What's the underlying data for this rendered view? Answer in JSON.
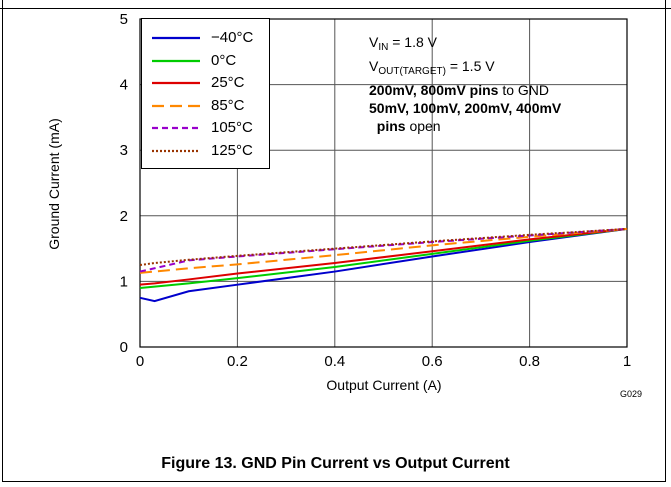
{
  "top_strip": "",
  "figure_code": "G029",
  "caption": "Figure 13. GND Pin Current vs Output Current",
  "notes": {
    "line1_main": "V",
    "line1_sub": "IN",
    "line1_rest": " = 1.8 V",
    "line2_main": "V",
    "line2_sub": "OUT(TARGET)",
    "line2_rest": " = 1.5 V",
    "line3_bold": "200mV, 800mV pins",
    "line3_rest": " to GND",
    "line4_bold": "50mV, 100mV, 200mV, 400mV",
    "line5_bold": "pins",
    "line5_rest": " open"
  },
  "chart_data": {
    "type": "line",
    "title": "Figure 13. GND Pin Current vs Output Current",
    "xlabel": "Output Current (A)",
    "ylabel": "Ground Current (mA)",
    "xlim": [
      0,
      1
    ],
    "ylim": [
      0,
      5
    ],
    "x_ticks": [
      "0",
      "0.2",
      "0.4",
      "0.6",
      "0.8",
      "1"
    ],
    "y_ticks": [
      "0",
      "1",
      "2",
      "3",
      "4",
      "5"
    ],
    "grid": true,
    "legend_position": "top-left",
    "series": [
      {
        "name": "−40°C",
        "color": "#0000cc",
        "dash": "solid",
        "x": [
          0,
          0.03,
          0.1,
          0.2,
          0.4,
          0.6,
          0.8,
          1.0
        ],
        "y": [
          0.75,
          0.7,
          0.85,
          0.95,
          1.15,
          1.38,
          1.6,
          1.8
        ]
      },
      {
        "name": "0°C",
        "color": "#00cc00",
        "dash": "solid",
        "x": [
          0,
          0.03,
          0.1,
          0.2,
          0.4,
          0.6,
          0.8,
          1.0
        ],
        "y": [
          0.9,
          0.92,
          0.97,
          1.05,
          1.22,
          1.42,
          1.62,
          1.8
        ]
      },
      {
        "name": "25°C",
        "color": "#dd0000",
        "dash": "solid",
        "x": [
          0,
          0.03,
          0.1,
          0.2,
          0.4,
          0.6,
          0.8,
          1.0
        ],
        "y": [
          0.95,
          0.97,
          1.03,
          1.12,
          1.28,
          1.46,
          1.64,
          1.8
        ]
      },
      {
        "name": "85°C",
        "color": "#ff8800",
        "dash": "long",
        "x": [
          0,
          0.03,
          0.1,
          0.2,
          0.4,
          0.6,
          0.8,
          1.0
        ],
        "y": [
          1.13,
          1.15,
          1.2,
          1.26,
          1.4,
          1.55,
          1.68,
          1.8
        ]
      },
      {
        "name": "105°C",
        "color": "#9900cc",
        "dash": "medium",
        "x": [
          0,
          0.03,
          0.1,
          0.2,
          0.4,
          0.6,
          0.8,
          1.0
        ],
        "y": [
          1.15,
          1.2,
          1.32,
          1.38,
          1.49,
          1.6,
          1.7,
          1.8
        ]
      },
      {
        "name": "125°C",
        "color": "#993300",
        "dash": "dotted",
        "x": [
          0,
          0.03,
          0.1,
          0.2,
          0.4,
          0.6,
          0.8,
          1.0
        ],
        "y": [
          1.25,
          1.28,
          1.33,
          1.39,
          1.5,
          1.61,
          1.71,
          1.8
        ]
      }
    ]
  }
}
